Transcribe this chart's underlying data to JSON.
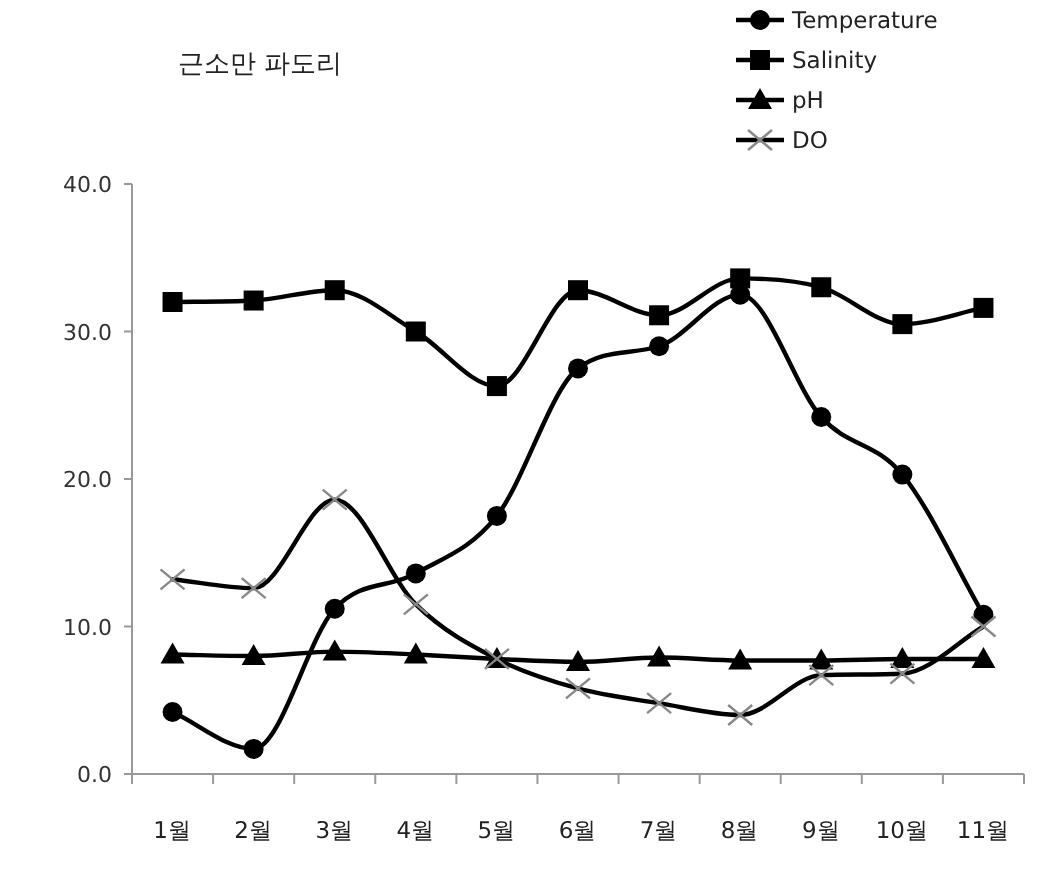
{
  "chart_data": {
    "type": "line",
    "title": "근소만 파도리",
    "categories": [
      "1월",
      "2월",
      "3월",
      "4월",
      "5월",
      "6월",
      "7월",
      "8월",
      "9월",
      "10월",
      "11월"
    ],
    "series": [
      {
        "name": "Temperature",
        "color": "#000000",
        "marker": "circle",
        "values": [
          4.2,
          1.7,
          11.2,
          13.6,
          17.5,
          27.5,
          29.0,
          32.5,
          24.2,
          20.3,
          10.8
        ]
      },
      {
        "name": "Salinity",
        "color": "#000000",
        "marker": "square",
        "values": [
          32.0,
          32.1,
          32.8,
          30.0,
          26.3,
          32.8,
          31.1,
          33.6,
          33.0,
          30.5,
          31.6
        ]
      },
      {
        "name": "pH",
        "color": "#000000",
        "marker": "triangle",
        "values": [
          8.1,
          8.0,
          8.3,
          8.1,
          7.8,
          7.6,
          7.9,
          7.7,
          7.7,
          7.8,
          7.8
        ]
      },
      {
        "name": "DO",
        "color": "#000000",
        "marker": "cross",
        "values": [
          13.2,
          12.6,
          18.6,
          11.5,
          7.8,
          5.8,
          4.8,
          4.0,
          6.7,
          6.8,
          10.0
        ]
      }
    ],
    "ylim": [
      0,
      40
    ],
    "yticks": [
      {
        "value": 0,
        "label": "0.0"
      },
      {
        "value": 10,
        "label": "10.0"
      },
      {
        "value": 20,
        "label": "20.0"
      },
      {
        "value": 30,
        "label": "30.0"
      },
      {
        "value": 40,
        "label": "40.0"
      }
    ],
    "line_style": "solid",
    "grid": false,
    "legend": "top right"
  }
}
